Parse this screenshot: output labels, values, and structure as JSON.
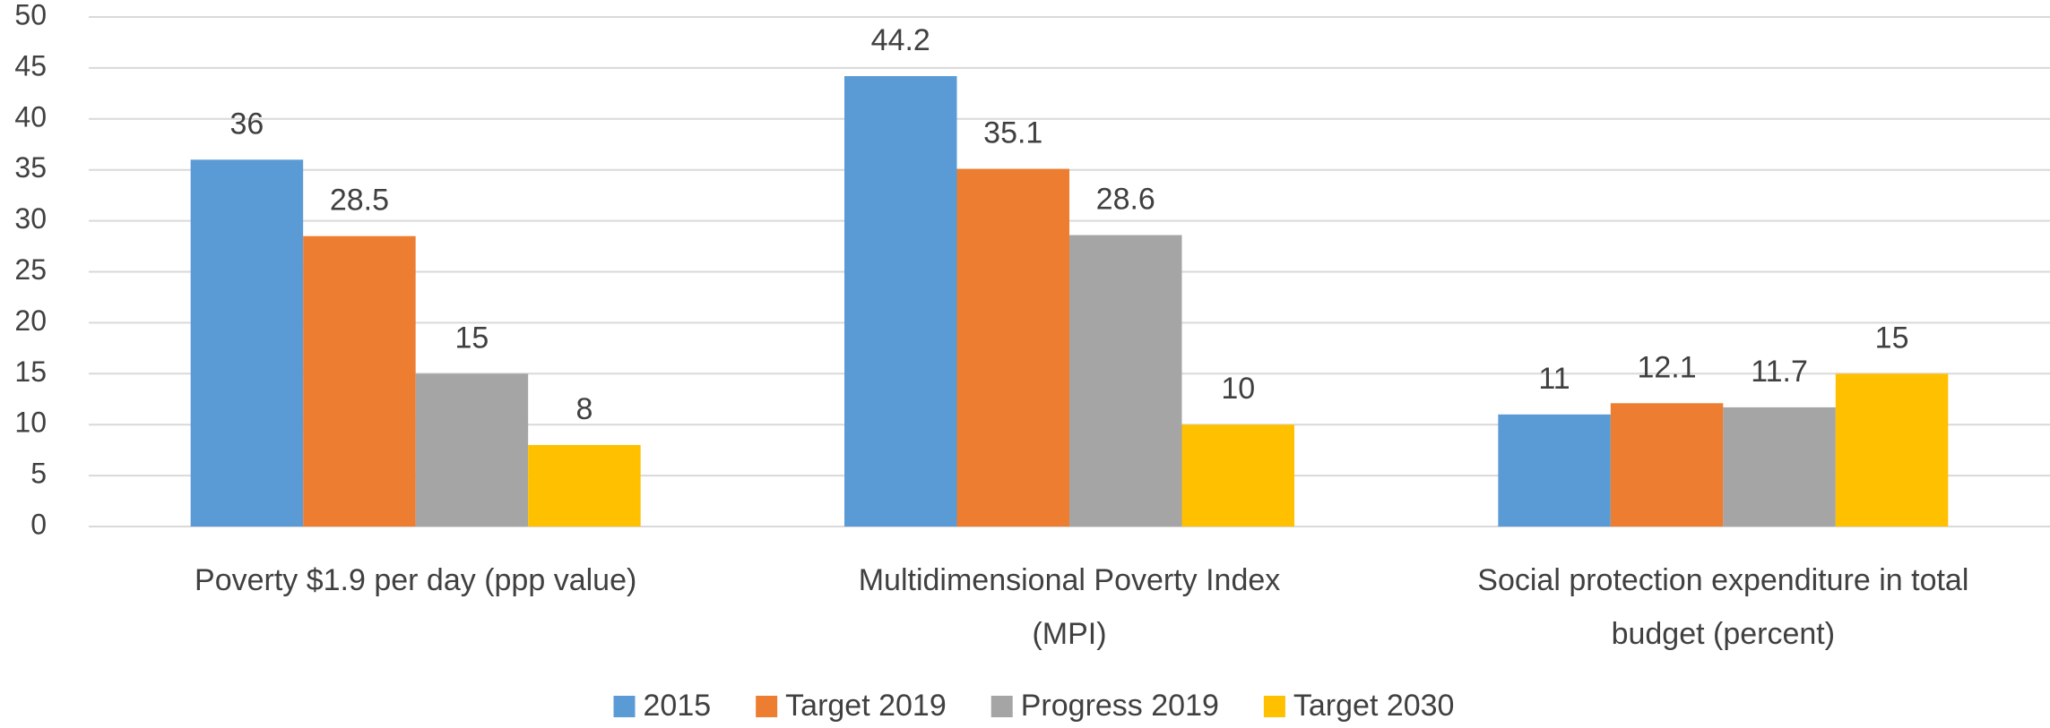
{
  "chart_data": {
    "type": "bar",
    "categories": [
      "Poverty $1.9 per day (ppp value)",
      "Multidimensional Poverty Index (MPI)",
      "Social protection expenditure in total budget (percent)"
    ],
    "series": [
      {
        "name": "2015",
        "color": "#5b9bd5",
        "values": [
          36,
          44.2,
          11
        ]
      },
      {
        "name": "Target 2019",
        "color": "#ed7d31",
        "values": [
          28.5,
          35.1,
          12.1
        ]
      },
      {
        "name": "Progress 2019",
        "color": "#a5a5a5",
        "values": [
          15,
          28.6,
          11.7
        ]
      },
      {
        "name": "Target 2030",
        "color": "#ffc000",
        "values": [
          8,
          10,
          15
        ]
      }
    ],
    "ylim": [
      0,
      50
    ],
    "yticks": [
      0,
      5,
      10,
      15,
      20,
      25,
      30,
      35,
      40,
      45,
      50
    ],
    "grid": true,
    "legend": "bottom",
    "data_labels": true
  }
}
